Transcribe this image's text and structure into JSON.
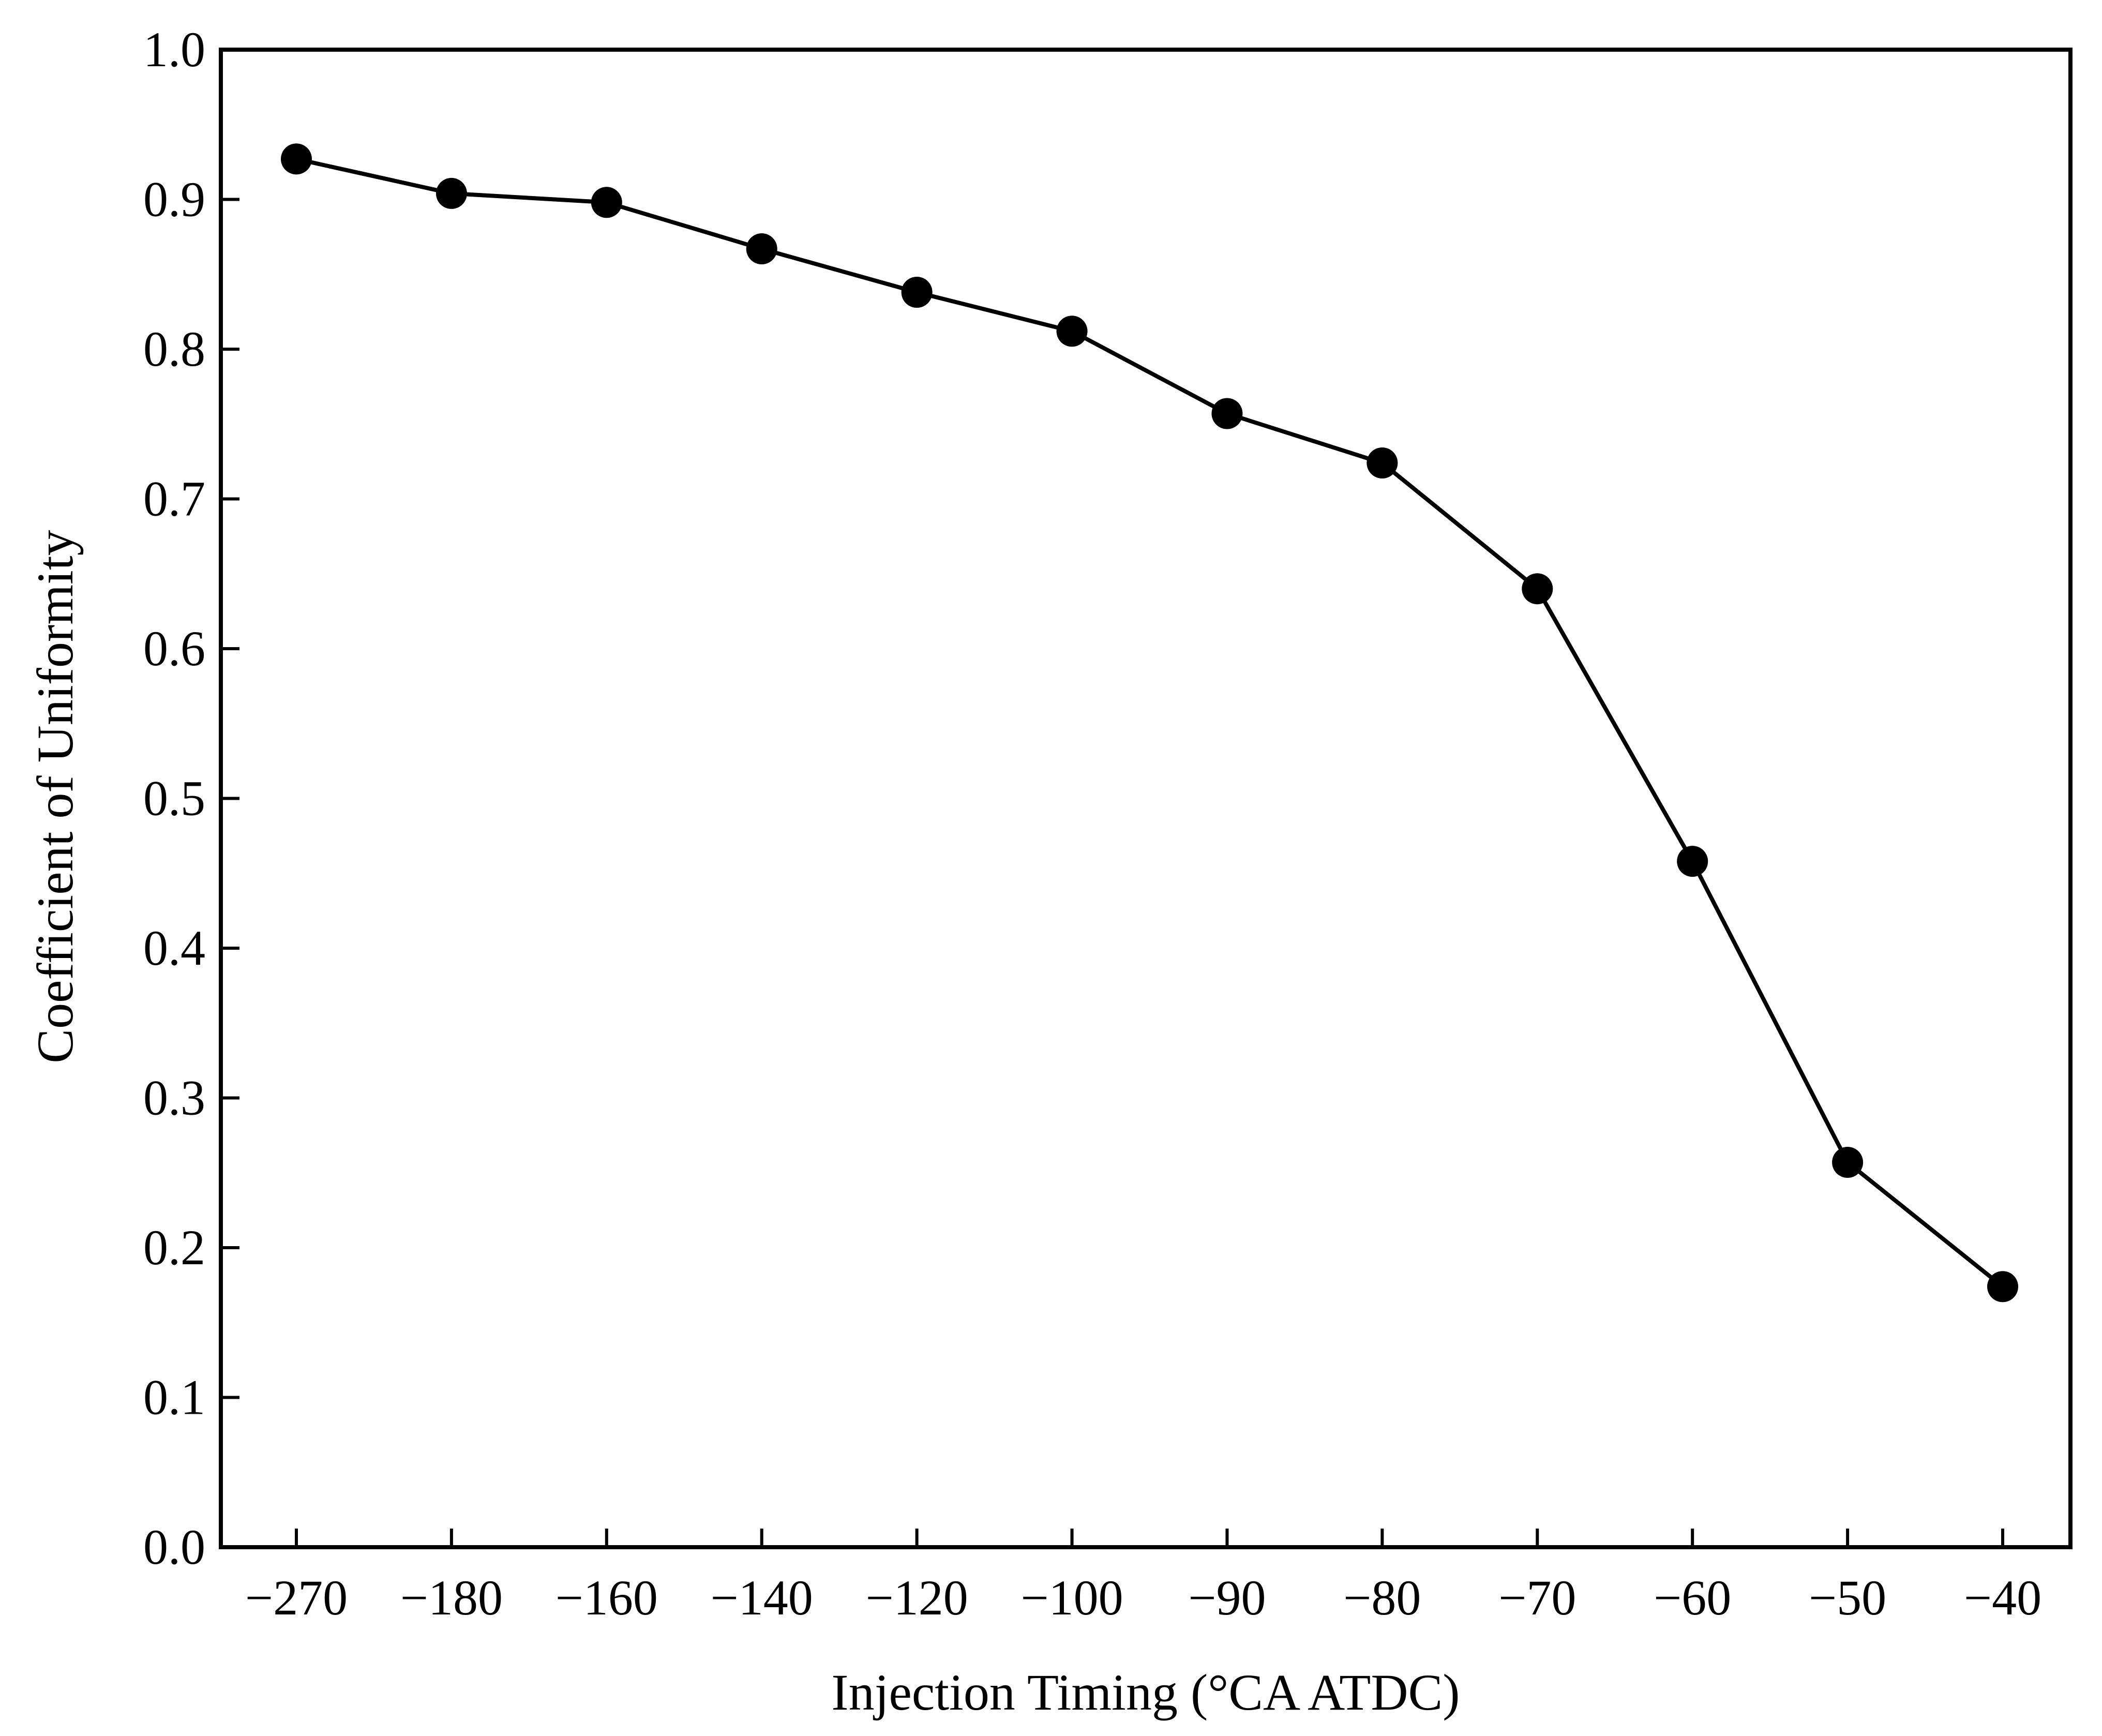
{
  "chart_data": {
    "type": "line",
    "title": "",
    "xlabel": "Injection Timing (°CA ATDC)",
    "ylabel": "Coefficient of Uniformity",
    "categories": [
      "−270",
      "−180",
      "−160",
      "−140",
      "−120",
      "−100",
      "−90",
      "−80",
      "−70",
      "−60",
      "−50",
      "−40"
    ],
    "series": [
      {
        "name": "Coefficient of Uniformity",
        "values": [
          0.927,
          0.904,
          0.898,
          0.867,
          0.838,
          0.812,
          0.757,
          0.724,
          0.64,
          0.458,
          0.257,
          0.174
        ]
      }
    ],
    "ylim": [
      0.0,
      1.0
    ],
    "yticks": [
      "0.0",
      "0.1",
      "0.2",
      "0.3",
      "0.4",
      "0.5",
      "0.6",
      "0.7",
      "0.8",
      "0.9",
      "1.0"
    ],
    "grid": false,
    "colors": {
      "line": "#000000",
      "marker": "#000000",
      "axis": "#000000"
    }
  }
}
